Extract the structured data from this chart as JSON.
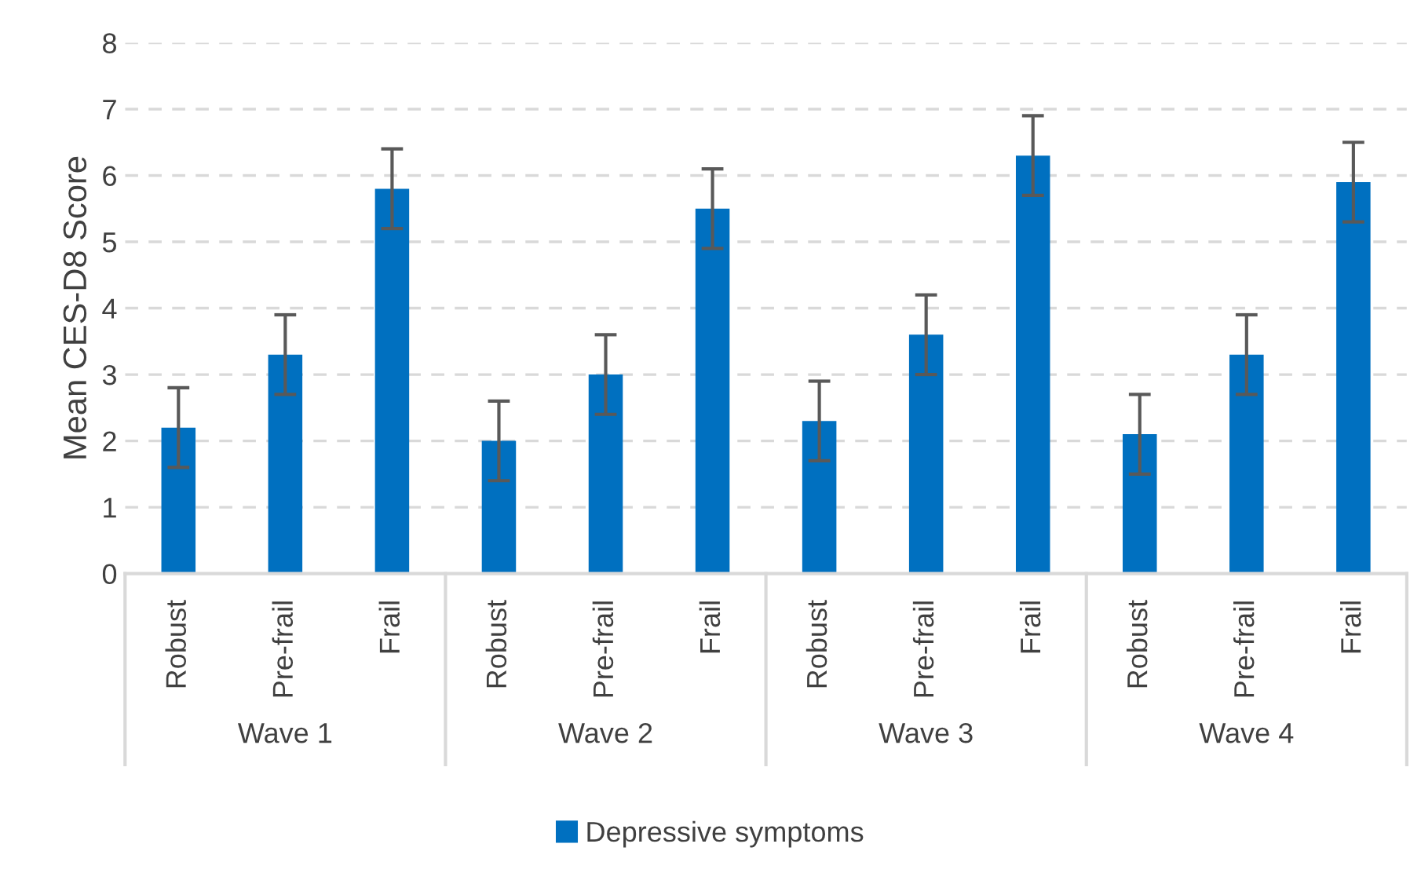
{
  "chart_data": {
    "type": "bar",
    "ylabel": "Mean CES-D8 Score",
    "categories": [
      "Robust",
      "Pre-frail",
      "Frail",
      "Robust",
      "Pre-frail",
      "Frail",
      "Robust",
      "Pre-frail",
      "Frail",
      "Robust",
      "Pre-frail",
      "Frail"
    ],
    "series": [
      {
        "name": "Depressive symptoms",
        "color": "#0070c0",
        "values": [
          2.2,
          3.3,
          5.8,
          2.0,
          3.0,
          5.5,
          2.3,
          3.6,
          6.3,
          2.1,
          3.3,
          5.9
        ],
        "errors": [
          0.6,
          0.6,
          0.6,
          0.6,
          0.6,
          0.6,
          0.6,
          0.6,
          0.6,
          0.6,
          0.6,
          0.6
        ]
      }
    ],
    "annotations": [
      "Wave 1",
      "Wave 2",
      "Wave 3",
      "Wave 4"
    ],
    "ylim": [
      0,
      8
    ],
    "yticks": [
      0,
      1,
      2,
      3,
      4,
      5,
      6,
      7,
      8
    ],
    "grid": "y",
    "legend": "bottom"
  }
}
